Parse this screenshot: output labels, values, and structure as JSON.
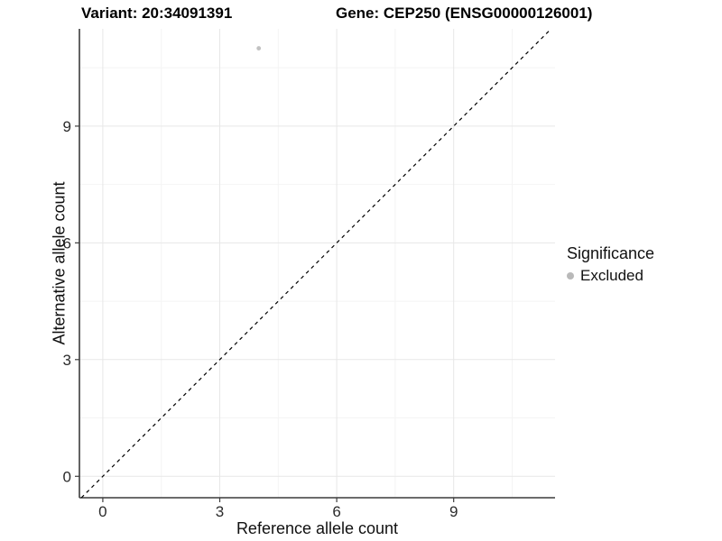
{
  "titles": {
    "variant": "Variant: 20:34091391",
    "gene": "Gene: CEP250 (ENSG00000126001)"
  },
  "legend": {
    "title": "Significance",
    "items": [
      {
        "label": "Excluded",
        "color": "#b9b9b9"
      }
    ]
  },
  "chart_data": {
    "type": "scatter",
    "title": "Variant: 20:34091391   Gene: CEP250 (ENSG00000126001)",
    "xlabel": "Reference allele count",
    "ylabel": "Alternative allele count",
    "xlim": [
      -0.6,
      11.6
    ],
    "ylim": [
      -0.55,
      11.5
    ],
    "x_ticks": [
      0,
      3,
      6,
      9
    ],
    "y_ticks": [
      0,
      3,
      6,
      9
    ],
    "x_minor_ticks": [
      1.5,
      4.5,
      7.5,
      10.5
    ],
    "y_minor_ticks": [
      1.5,
      4.5,
      7.5,
      10.5
    ],
    "grid": true,
    "legend_position": "right",
    "series": [
      {
        "name": "Excluded",
        "color": "#c1c1c1",
        "x": [
          4
        ],
        "y": [
          11
        ]
      }
    ],
    "reference_line": {
      "slope": 1,
      "intercept": 0,
      "style": "dashed",
      "color": "#000000"
    },
    "colors": {
      "grid_major": "#e7e7e7",
      "grid_minor": "#f4f4f4",
      "axis_line": "#3c3c3c",
      "tick_text": "#2b2b2b"
    }
  }
}
